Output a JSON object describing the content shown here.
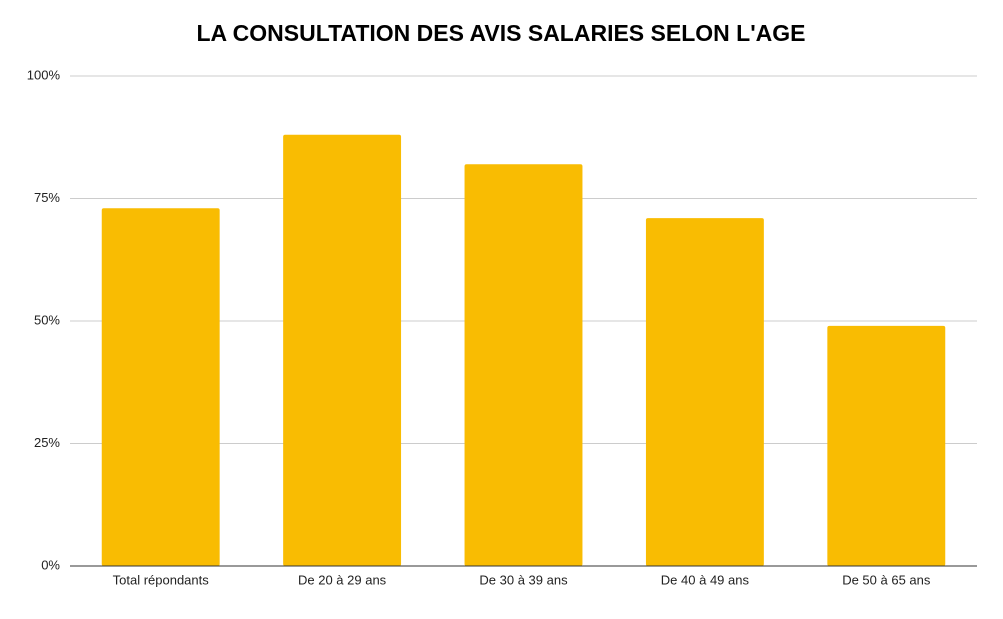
{
  "chart_data": {
    "type": "bar",
    "title": "LA CONSULTATION DES AVIS SALARIES SELON L'AGE",
    "categories": [
      "Total répondants",
      "De 20 à 29 ans",
      "De 30 à 39 ans",
      "De 40 à 49 ans",
      "De 50 à 65 ans"
    ],
    "values": [
      73,
      88,
      82,
      71,
      49
    ],
    "color": "#f9bc02",
    "ylim": [
      0,
      100
    ],
    "yticks": [
      {
        "value": 0,
        "label": "0%"
      },
      {
        "value": 25,
        "label": "25%"
      },
      {
        "value": 50,
        "label": "50%"
      },
      {
        "value": 75,
        "label": "75%"
      },
      {
        "value": 100,
        "label": "100%"
      }
    ],
    "grid": true
  }
}
